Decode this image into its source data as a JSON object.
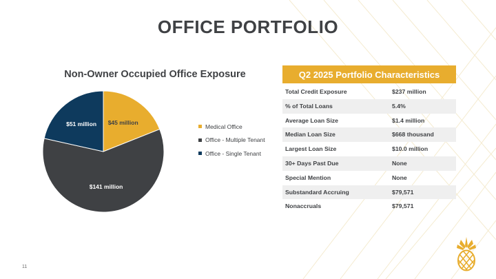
{
  "slide": {
    "title": "OFFICE PORTFOLIO",
    "page_number": "11"
  },
  "colors": {
    "accent_gold": "#e8ad2e",
    "dark_gray": "#3f4144",
    "navy": "#0e3a5d",
    "row_shade": "#efefef"
  },
  "chart_data": {
    "type": "pie",
    "title": "Non-Owner Occupied Office Exposure",
    "legend_position": "right",
    "slices": [
      {
        "name": "Medical Office",
        "value": 45,
        "label": "$45 million",
        "color": "#e8ad2e"
      },
      {
        "name": "Office - Multiple Tenant",
        "value": 141,
        "label": "$141 million",
        "color": "#3f4144"
      },
      {
        "name": "Office - Single Tenant",
        "value": 51,
        "label": "$51 million",
        "color": "#0e3a5d"
      }
    ]
  },
  "characteristics": {
    "header": "Q2 2025 Portfolio Characteristics",
    "rows": [
      {
        "label": "Total Credit Exposure",
        "value": "$237 million"
      },
      {
        "label": "% of Total Loans",
        "value": "5.4%"
      },
      {
        "label": "Average Loan Size",
        "value": "$1.4 million"
      },
      {
        "label": "Median Loan Size",
        "value": "$668 thousand"
      },
      {
        "label": "Largest Loan Size",
        "value": "$10.0 million"
      },
      {
        "label": "30+ Days Past Due",
        "value": "None"
      },
      {
        "label": "Special Mention",
        "value": "None"
      },
      {
        "label": "Substandard Accruing",
        "value": "$79,571"
      },
      {
        "label": "Nonaccruals",
        "value": "$79,571"
      }
    ]
  },
  "icons": {
    "logo": "pineapple-logo-icon"
  }
}
